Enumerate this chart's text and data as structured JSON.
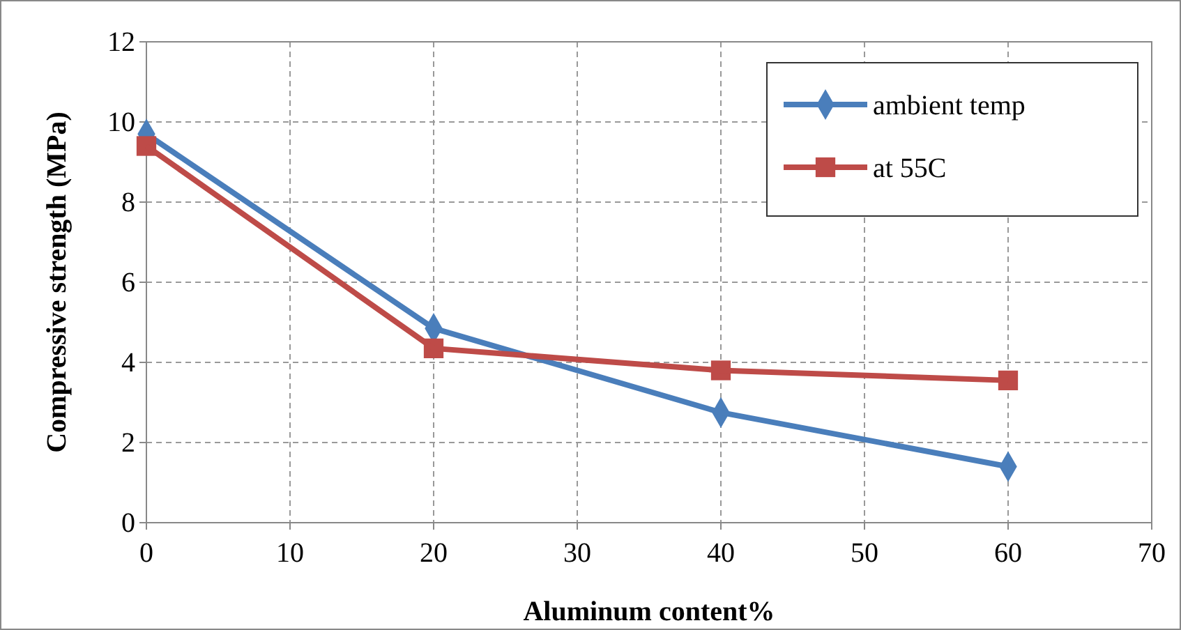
{
  "chart_data": {
    "type": "line",
    "xlabel": "Aluminum content%",
    "ylabel": "Compressive strength (MPa)",
    "x": [
      0,
      20,
      40,
      60
    ],
    "series": [
      {
        "name": "ambient temp",
        "color": "#4a7ebb",
        "marker": "diamond",
        "values": [
          9.7,
          4.85,
          2.75,
          1.4
        ]
      },
      {
        "name": "at 55C",
        "color": "#be4b48",
        "marker": "square",
        "values": [
          9.4,
          4.35,
          3.8,
          3.55
        ]
      }
    ],
    "xlim": [
      0,
      70
    ],
    "xticks": [
      0,
      10,
      20,
      30,
      40,
      50,
      60,
      70
    ],
    "ylim": [
      0,
      12
    ],
    "yticks": [
      0,
      2,
      4,
      6,
      8,
      10,
      12
    ],
    "grid": true,
    "legend": "top right",
    "line_style": "solid"
  }
}
